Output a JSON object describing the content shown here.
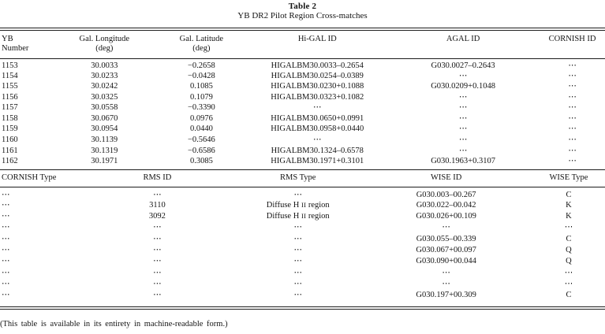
{
  "title": "Table 2",
  "subtitle": "YB DR2 Pilot Region Cross-matches",
  "footnote": "(This table is available in its entirety in machine-readable form.)",
  "colors": {
    "text": "#141414",
    "rule": "#1c1c1c",
    "background": "#ffffff"
  },
  "upper_table": {
    "headers": [
      {
        "line1": "YB",
        "line2": "Number"
      },
      {
        "line1": "Gal. Longitude",
        "line2": "(deg)"
      },
      {
        "line1": "Gal. Latitude",
        "line2": "(deg)"
      },
      {
        "line1": "Hi-GAL ID",
        "line2": ""
      },
      {
        "line1": "AGAL ID",
        "line2": ""
      },
      {
        "line1": "CORNISH ID",
        "line2": ""
      }
    ],
    "rows": [
      [
        "1153",
        "30.0033",
        "−0.2658",
        "HIGALBM30.0033–0.2654",
        "G030.0027–0.2643",
        "⋯"
      ],
      [
        "1154",
        "30.0233",
        "−0.0428",
        "HIGALBM30.0254–0.0389",
        "⋯",
        "⋯"
      ],
      [
        "1155",
        "30.0242",
        "0.1085",
        "HIGALBM30.0230+0.1088",
        "G030.0209+0.1048",
        "⋯"
      ],
      [
        "1156",
        "30.0325",
        "0.1079",
        "HIGALBM30.0323+0.1082",
        "⋯",
        "⋯"
      ],
      [
        "1157",
        "30.0558",
        "−0.3390",
        "⋯",
        "⋯",
        "⋯"
      ],
      [
        "1158",
        "30.0670",
        "0.0976",
        "HIGALBM30.0650+0.0991",
        "⋯",
        "⋯"
      ],
      [
        "1159",
        "30.0954",
        "0.0440",
        "HIGALBM30.0958+0.0440",
        "⋯",
        "⋯"
      ],
      [
        "1160",
        "30.1139",
        "−0.5646",
        "⋯",
        "⋯",
        "⋯"
      ],
      [
        "1161",
        "30.1319",
        "−0.6586",
        "HIGALBM30.1324–0.6578",
        "⋯",
        "⋯"
      ],
      [
        "1162",
        "30.1971",
        "0.3085",
        "HIGALBM30.1971+0.3101",
        "G030.1963+0.3107",
        "⋯"
      ]
    ]
  },
  "lower_table": {
    "headers": [
      {
        "line1": "CORNISH Type",
        "line2": ""
      },
      {
        "line1": "RMS ID",
        "line2": ""
      },
      {
        "line1": "RMS Type",
        "line2": ""
      },
      {
        "line1": "WISE ID",
        "line2": ""
      },
      {
        "line1": "WISE Type",
        "line2": ""
      }
    ],
    "rows": [
      [
        "⋯",
        "⋯",
        "⋯",
        "G030.003–00.267",
        "C"
      ],
      [
        "⋯",
        "3110",
        "Diffuse H II region",
        "G030.022–00.042",
        "K"
      ],
      [
        "⋯",
        "3092",
        "Diffuse H II region",
        "G030.026+00.109",
        "K"
      ],
      [
        "⋯",
        "⋯",
        "⋯",
        "⋯",
        "⋯"
      ],
      [
        "⋯",
        "⋯",
        "⋯",
        "G030.055–00.339",
        "C"
      ],
      [
        "⋯",
        "⋯",
        "⋯",
        "G030.067+00.097",
        "Q"
      ],
      [
        "⋯",
        "⋯",
        "⋯",
        "G030.090+00.044",
        "Q"
      ],
      [
        "⋯",
        "⋯",
        "⋯",
        "⋯",
        "⋯"
      ],
      [
        "⋯",
        "⋯",
        "⋯",
        "⋯",
        "⋯"
      ],
      [
        "⋯",
        "⋯",
        "⋯",
        "G030.197+00.309",
        "C"
      ]
    ]
  }
}
